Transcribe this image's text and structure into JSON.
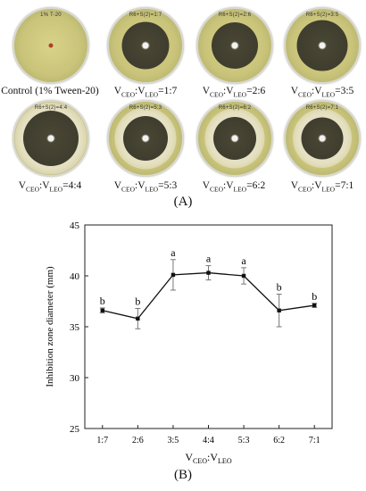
{
  "panel_a": {
    "label": "(A)",
    "dishes": [
      {
        "plate_text": "1% T-20",
        "caption": "Control (1% Tween-20)",
        "zone_pct": 0
      },
      {
        "plate_text": "R6+S(2)=1:7",
        "caption_parts": [
          "V",
          "CEO",
          ":V",
          "LEO",
          "=1:7"
        ],
        "zone_pct": 0.62
      },
      {
        "plate_text": "R6+S(2)=2:6",
        "caption_parts": [
          "V",
          "CEO",
          ":V",
          "LEO",
          "=2:6"
        ],
        "zone_pct": 0.6
      },
      {
        "plate_text": "R6+S(2)=3:5",
        "caption_parts": [
          "V",
          "CEO",
          ":V",
          "LEO",
          "=3:5"
        ],
        "zone_pct": 0.66
      },
      {
        "plate_text": "R6+S(2)=4:4",
        "caption_parts": [
          "V",
          "CEO",
          ":V",
          "LEO",
          "=4:4"
        ],
        "zone_pct": 0.72
      },
      {
        "plate_text": "R6+S(2)=5:3",
        "caption_parts": [
          "V",
          "CEO",
          ":V",
          "LEO",
          "=5:3"
        ],
        "zone_pct": 0.58
      },
      {
        "plate_text": "R6+S(2)=6:2",
        "caption_parts": [
          "V",
          "CEO",
          ":V",
          "LEO",
          "=6:2"
        ],
        "zone_pct": 0.56
      },
      {
        "plate_text": "R6+S(2)=7:1",
        "caption_parts": [
          "V",
          "CEO",
          ":V",
          "LEO",
          "=7:1"
        ],
        "zone_pct": 0.55
      }
    ],
    "colors": {
      "zone_dark": "#3f3d2e",
      "agar": "#c9c47a",
      "halo": "#ece7d2"
    }
  },
  "panel_b": {
    "label": "(B)",
    "chart_data": {
      "type": "line",
      "categories": [
        "1:7",
        "2:6",
        "3:5",
        "4:4",
        "5:3",
        "6:2",
        "7:1"
      ],
      "values": [
        36.6,
        35.8,
        40.1,
        40.3,
        40.0,
        36.6,
        37.1
      ],
      "errors": [
        0.25,
        1.0,
        1.5,
        0.7,
        0.8,
        1.6,
        0.2
      ],
      "significance": [
        "b",
        "b",
        "a",
        "a",
        "a",
        "b",
        "b"
      ],
      "ylabel": "Inhibition zone diameter (mm)",
      "xlabel_parts": [
        "V",
        "CEO",
        ":V",
        "LEO"
      ],
      "ylim": [
        25,
        45
      ],
      "yticks": [
        25,
        30,
        35,
        40,
        45
      ],
      "grid": false
    }
  }
}
